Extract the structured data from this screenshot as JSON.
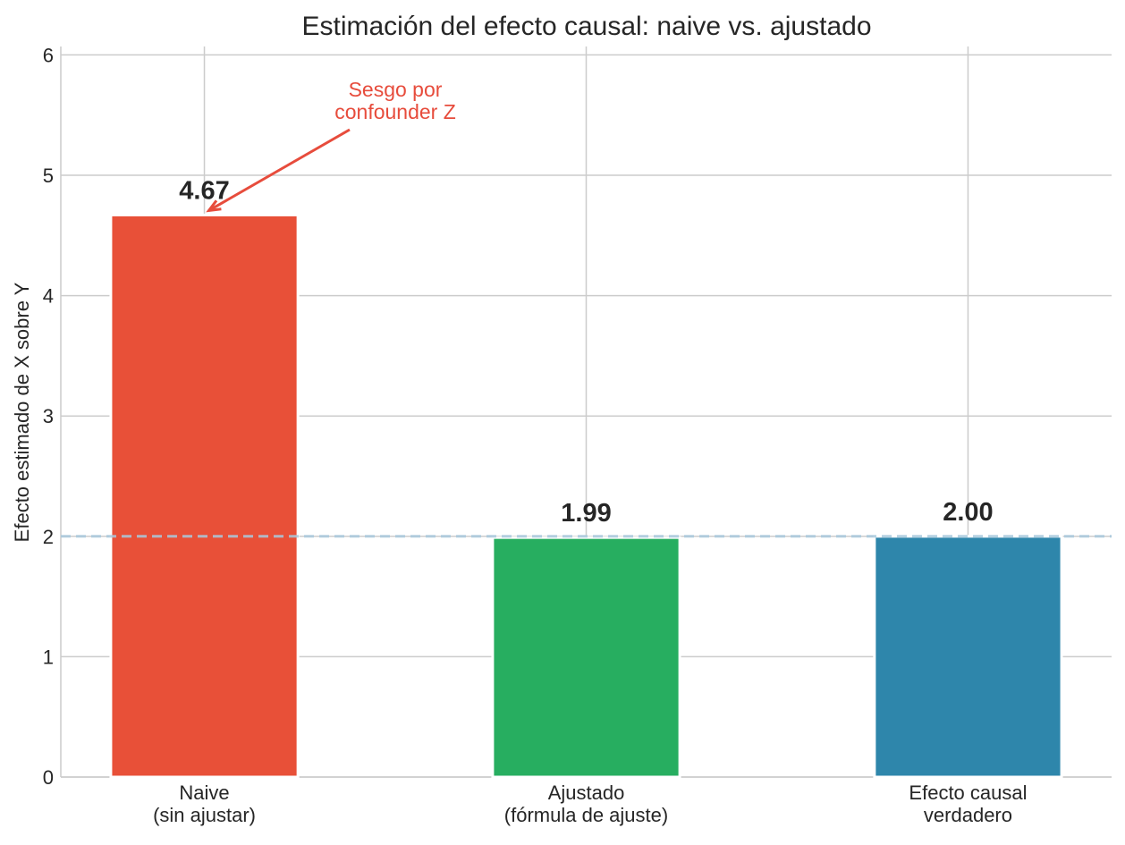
{
  "chart_data": {
    "type": "bar",
    "title": "Estimación del efecto causal: naive vs. ajustado",
    "xlabel": "",
    "ylabel": "Efecto estimado de X sobre Y",
    "categories": [
      "Naive\n(sin ajustar)",
      "Ajustado\n(fórmula de ajuste)",
      "Efecto causal\nverdadero"
    ],
    "values": [
      4.67,
      1.99,
      2.0
    ],
    "data_labels": [
      "4.67",
      "1.99",
      "2.00"
    ],
    "colors": [
      "#e85038",
      "#27ae60",
      "#2e86ab"
    ],
    "ylim": [
      0,
      6.07
    ],
    "yticks": [
      0,
      1,
      2,
      3,
      4,
      5,
      6
    ],
    "grid": true,
    "reference_line": {
      "y": 2,
      "style": "dashed",
      "color": "#a9c9dd"
    },
    "annotation": {
      "text": "Sesgo por\nconfounder Z",
      "color": "#e74c3c",
      "points_to_category": 0,
      "points_to_value": 4.67
    }
  }
}
